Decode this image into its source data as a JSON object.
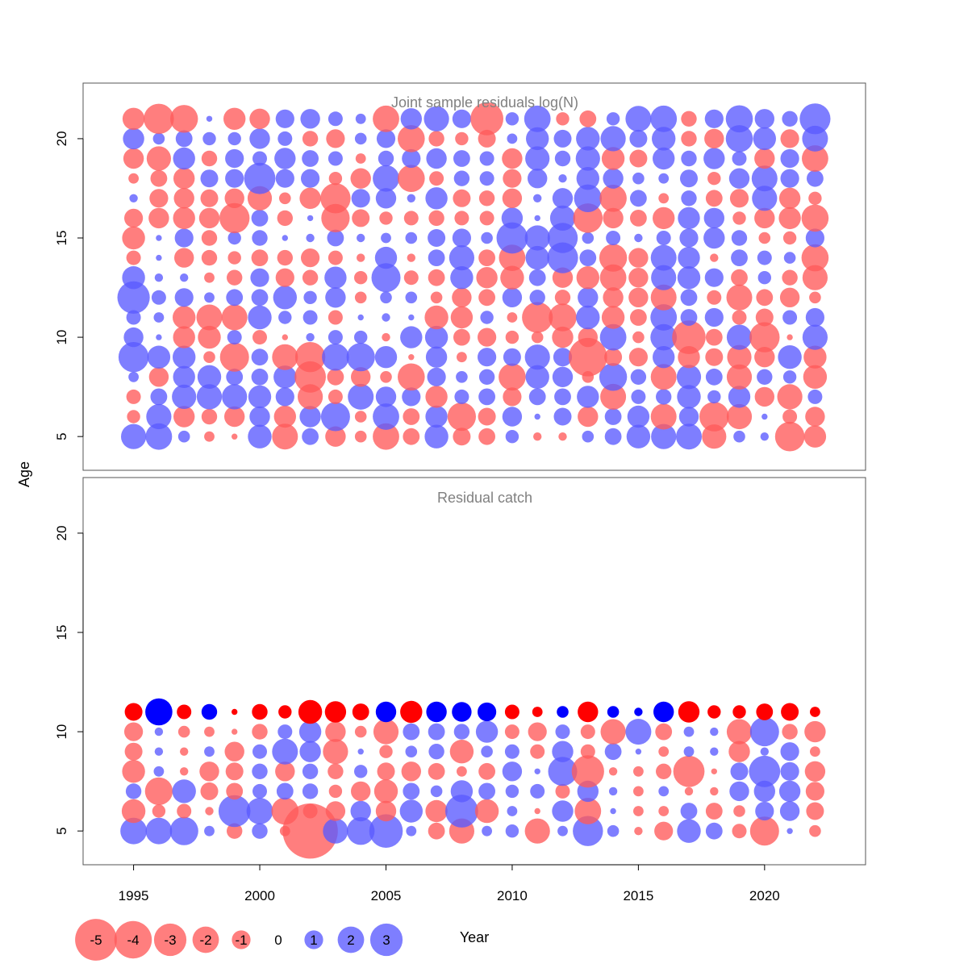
{
  "chart_data": [
    {
      "type": "scatter",
      "title": "Joint sample residuals log(N)",
      "xlabel": "",
      "ylabel": "Age",
      "xlim": [
        1993,
        2024
      ],
      "ylim": [
        3.3,
        22.8
      ],
      "x_ticks": [
        1995,
        2000,
        2005,
        2010,
        2015,
        2020
      ],
      "y_ticks": [
        5,
        10,
        15,
        20
      ],
      "grid": false,
      "encoding": "circle area proportional to |residual|; red = negative, blue = positive",
      "colors": {
        "negative": "#ff5a5a",
        "positive": "#5a5aff"
      },
      "years": [
        1995,
        1996,
        1997,
        1998,
        1999,
        2000,
        2001,
        2002,
        2003,
        2004,
        2005,
        2006,
        2007,
        2008,
        2009,
        2010,
        2011,
        2012,
        2013,
        2014,
        2015,
        2016,
        2017,
        2018,
        2019,
        2020,
        2021,
        2022
      ],
      "ages": [
        5,
        6,
        7,
        8,
        9,
        10,
        11,
        12,
        13,
        14,
        15,
        16,
        17,
        18,
        19,
        20,
        21
      ],
      "residuals": [
        [
          1.8,
          2.0,
          0.4,
          -0.3,
          -0.1,
          1.6,
          -1.9,
          0.8,
          -1.2,
          -0.4,
          -2.0,
          -0.8,
          1.6,
          -0.9,
          -0.8,
          0.5,
          -0.2,
          -0.2,
          0.4,
          0.8,
          1.6,
          1.8,
          1.9,
          -1.7,
          0.4,
          0.2,
          -2.5,
          -1.4
        ],
        [
          -0.5,
          1.8,
          -1.3,
          -0.7,
          -1.2,
          1.2,
          -1.4,
          1.3,
          2.4,
          -0.4,
          2.0,
          -0.8,
          1.4,
          -2.3,
          -0.9,
          1.1,
          0.1,
          0.9,
          -1.2,
          0.8,
          1.4,
          -1.9,
          1.1,
          -2.5,
          -1.8,
          0.1,
          -0.6,
          -1.1
        ],
        [
          -0.6,
          0.8,
          1.7,
          1.8,
          1.8,
          1.5,
          1.0,
          -1.8,
          -0.6,
          1.9,
          1.2,
          1.0,
          -1.4,
          0.6,
          0.8,
          -1.0,
          0.8,
          0.8,
          1.4,
          -1.9,
          0.6,
          0.7,
          1.6,
          0.5,
          1.4,
          -1.1,
          -1.8,
          0.6
        ],
        [
          0.3,
          -1.1,
          1.4,
          1.6,
          0.8,
          0.8,
          1.5,
          -2.8,
          -0.8,
          -1.1,
          -0.4,
          -2.1,
          1.0,
          0.4,
          0.7,
          -2.1,
          1.6,
          1.2,
          -0.4,
          2.2,
          0.7,
          -1.9,
          1.7,
          0.8,
          -1.8,
          0.7,
          0.5,
          -1.6
        ],
        [
          2.6,
          1.5,
          1.5,
          -0.4,
          -2.4,
          0.8,
          -1.9,
          -2.6,
          2.1,
          2.3,
          1.4,
          -0.1,
          1.3,
          -0.3,
          1.0,
          0.9,
          1.8,
          1.0,
          -4.2,
          -0.9,
          -1.0,
          1.4,
          -1.4,
          -0.9,
          -1.7,
          -1.2,
          1.6,
          -1.5
        ],
        [
          1.1,
          0.1,
          -1.4,
          -1.5,
          0.6,
          -0.6,
          -0.1,
          0.2,
          0.6,
          0.5,
          -0.2,
          1.4,
          1.5,
          -0.8,
          -1.0,
          -0.5,
          -0.4,
          -1.3,
          -1.1,
          2.0,
          -0.4,
          2.0,
          -3.2,
          -0.8,
          1.8,
          -2.6,
          -0.1,
          1.8
        ],
        [
          0.6,
          0.3,
          -1.5,
          -1.9,
          -1.9,
          1.6,
          0.5,
          0.6,
          -0.6,
          0.1,
          0.2,
          0.1,
          -1.6,
          -1.4,
          0.5,
          -0.3,
          -2.7,
          -2.2,
          1.6,
          -1.5,
          -0.8,
          2.0,
          0.8,
          1.0,
          -0.6,
          -0.9,
          0.6,
          1.0
        ],
        [
          3.0,
          0.6,
          1.0,
          0.3,
          0.8,
          0.8,
          1.6,
          0.5,
          1.2,
          -0.4,
          0.4,
          0.4,
          -0.4,
          -1.1,
          -0.8,
          1.1,
          0.7,
          -0.7,
          1.2,
          -1.2,
          -1.1,
          -1.9,
          0.8,
          -0.6,
          -1.9,
          -0.8,
          -1.1,
          -0.4
        ],
        [
          1.5,
          0.2,
          0.2,
          -0.3,
          -0.7,
          1.0,
          -1.0,
          -0.7,
          1.4,
          -0.5,
          2.4,
          -0.6,
          -0.8,
          1.5,
          -1.3,
          -1.6,
          0.8,
          -1.2,
          -1.5,
          -2.0,
          -1.1,
          1.8,
          1.5,
          1.0,
          -0.8,
          0.5,
          -0.7,
          -1.8
        ],
        [
          -0.6,
          0.1,
          -1.1,
          -0.7,
          -0.5,
          -0.8,
          -0.7,
          -1.0,
          -0.6,
          -0.2,
          1.4,
          -0.2,
          0.8,
          1.8,
          -0.8,
          -2.0,
          1.6,
          2.7,
          0.8,
          -2.2,
          -1.1,
          1.9,
          1.4,
          -0.2,
          0.8,
          0.6,
          0.4,
          -2.1
        ],
        [
          -1.5,
          0.1,
          1.0,
          -0.7,
          0.5,
          0.7,
          0.1,
          0.2,
          0.8,
          0.2,
          0.3,
          0.4,
          0.9,
          1.0,
          0.4,
          2.8,
          1.8,
          2.6,
          0.4,
          0.6,
          0.2,
          0.6,
          1.0,
          1.3,
          0.7,
          -0.4,
          -0.5,
          1.0
        ],
        [
          -1.0,
          -1.2,
          -1.4,
          -1.2,
          -2.6,
          0.8,
          -0.7,
          0.1,
          -2.3,
          -0.9,
          -0.5,
          -0.6,
          -0.7,
          -0.6,
          -0.6,
          1.3,
          0.1,
          1.8,
          -2.5,
          -1.2,
          -0.8,
          -1.4,
          1.4,
          1.2,
          -0.5,
          -1.2,
          -1.4,
          -2.1
        ],
        [
          0.2,
          -1.0,
          -1.2,
          -0.9,
          -1.1,
          -1.7,
          -0.4,
          -1.3,
          -2.6,
          1.0,
          1.2,
          0.2,
          1.4,
          -0.9,
          -0.7,
          -1.1,
          0.2,
          1.2,
          2.2,
          -2.1,
          0.8,
          -0.3,
          0.7,
          -0.8,
          -1.0,
          1.8,
          -1.3,
          -0.5
        ],
        [
          -0.3,
          -0.8,
          -1.3,
          0.9,
          1.0,
          2.8,
          1.0,
          1.0,
          -0.5,
          -1.2,
          2.0,
          -2.1,
          -0.6,
          0.7,
          0.6,
          -1.0,
          1.1,
          0.2,
          1.5,
          1.2,
          0.4,
          0.3,
          0.9,
          -0.5,
          1.2,
          1.9,
          1.0,
          0.8
        ],
        [
          -1.2,
          -1.7,
          1.4,
          -0.7,
          1.0,
          0.6,
          1.3,
          0.8,
          0.6,
          -0.3,
          0.7,
          1.0,
          1.2,
          0.8,
          0.6,
          -1.2,
          1.7,
          0.7,
          1.7,
          -1.5,
          -0.9,
          1.4,
          0.7,
          1.3,
          0.6,
          -1.2,
          1.0,
          -2.0
        ],
        [
          1.3,
          0.4,
          0.8,
          0.5,
          0.5,
          1.2,
          0.6,
          -0.7,
          -1.0,
          0.4,
          1.0,
          -2.1,
          -0.7,
          -0.5,
          -0.9,
          0.3,
          1.5,
          0.9,
          1.6,
          1.8,
          0.9,
          1.6,
          -0.7,
          -1.1,
          2.1,
          1.5,
          -1.0,
          1.9
        ],
        [
          -1.4,
          -2.6,
          -2.2,
          0.1,
          -1.4,
          -1.2,
          1.0,
          1.1,
          0.6,
          0.3,
          -2.0,
          1.3,
          1.8,
          1.0,
          -3.1,
          0.5,
          2.0,
          -0.5,
          -0.8,
          0.5,
          1.9,
          2.0,
          -0.7,
          1.0,
          2.1,
          1.1,
          0.7,
          2.7
        ]
      ],
      "note_rows": "residuals[i] = age ages[i], columns = years"
    },
    {
      "type": "scatter",
      "title": "Residual catch",
      "xlabel": "Year",
      "ylabel": "Age",
      "xlim": [
        1993,
        2024
      ],
      "ylim": [
        3.3,
        22.8
      ],
      "x_ticks": [
        1995,
        2000,
        2005,
        2010,
        2015,
        2020
      ],
      "x_tick_labels": [
        "1995",
        "2000",
        "2005",
        "2010",
        "2015",
        "2020"
      ],
      "y_ticks": [
        5,
        10,
        15,
        20
      ],
      "grid": false,
      "encoding": "circle area proportional to |residual|; red = negative, blue = positive; age 11 plotted opaque",
      "colors": {
        "negative": "#ff5a5a",
        "positive": "#5a5aff",
        "negative_plus_group": "#ff0000",
        "positive_plus_group": "#0000ff"
      },
      "years": [
        1995,
        1996,
        1997,
        1998,
        1999,
        2000,
        2001,
        2002,
        2003,
        2004,
        2005,
        2006,
        2007,
        2008,
        2009,
        2010,
        2011,
        2012,
        2013,
        2014,
        2015,
        2016,
        2017,
        2018,
        2019,
        2020,
        2021,
        2022
      ],
      "ages": [
        5,
        6,
        7,
        8,
        9,
        10,
        11
      ],
      "residuals": [
        [
          2.0,
          2.0,
          2.3,
          0.3,
          -0.7,
          0.7,
          -0.3,
          -8.7,
          1.8,
          2.2,
          3.2,
          0.3,
          -0.8,
          -1.8,
          0.3,
          0.5,
          -1.8,
          0.3,
          2.6,
          0.4,
          -0.2,
          -1.0,
          1.6,
          0.8,
          -0.6,
          -2.4,
          0.1,
          -0.4
        ],
        [
          -1.6,
          -0.5,
          -0.6,
          -0.2,
          2.9,
          2.0,
          -2.1,
          -0.6,
          -1.1,
          1.2,
          -1.2,
          1.5,
          -1.4,
          3.1,
          -1.6,
          0.3,
          -0.1,
          1.3,
          -2.0,
          0.1,
          -0.3,
          -0.3,
          0.8,
          -0.8,
          -0.4,
          1.0,
          1.1,
          -0.9
        ],
        [
          0.7,
          -2.2,
          1.6,
          -0.9,
          -0.8,
          0.6,
          0.8,
          0.7,
          -0.5,
          -1.1,
          -1.6,
          0.8,
          0.4,
          1.4,
          0.8,
          0.5,
          0.6,
          -0.6,
          1.3,
          0.2,
          -0.3,
          0.3,
          -0.2,
          -0.2,
          1.1,
          1.3,
          1.3,
          -1.0
        ],
        [
          -1.5,
          0.3,
          -0.2,
          -1.1,
          -0.9,
          0.7,
          -1.1,
          0.7,
          -0.7,
          0.5,
          -0.9,
          -1.1,
          -0.8,
          -0.3,
          -0.8,
          1.1,
          0.1,
          2.4,
          -3.0,
          -0.2,
          -0.3,
          -0.7,
          -2.8,
          -0.1,
          0.9,
          2.8,
          1.0,
          -1.2
        ],
        [
          -0.9,
          0.2,
          -0.2,
          0.3,
          -1.1,
          0.6,
          1.9,
          1.3,
          -1.8,
          0.1,
          -0.5,
          0.4,
          0.7,
          -1.6,
          0.4,
          0.6,
          -0.6,
          1.3,
          -0.6,
          0.8,
          0.1,
          -0.3,
          0.3,
          0.2,
          -1.3,
          0.2,
          1.0,
          -0.3
        ],
        [
          -1.0,
          0.2,
          -0.4,
          -0.3,
          -0.1,
          -0.7,
          0.6,
          1.4,
          -1.2,
          -0.4,
          -1.8,
          0.8,
          0.8,
          0.7,
          1.4,
          -0.6,
          -1.0,
          0.6,
          -0.6,
          -1.8,
          1.9,
          -0.8,
          0.3,
          0.2,
          -1.8,
          2.4,
          -0.7,
          -1.3
        ],
        [
          -0.9,
          2.1,
          -0.6,
          0.7,
          -0.1,
          -0.7,
          -0.5,
          -1.6,
          -1.3,
          -0.8,
          1.2,
          -1.4,
          1.2,
          1.1,
          1.0,
          -0.6,
          -0.3,
          0.4,
          -1.2,
          0.4,
          0.2,
          1.2,
          -1.3,
          -0.5,
          -0.5,
          -0.8,
          -0.9,
          -0.3
        ]
      ],
      "note_rows": "residuals[i] = age ages[i], columns = years"
    }
  ],
  "legend": {
    "placement": "bottom-left",
    "items": [
      {
        "label": "-5",
        "value": -5
      },
      {
        "label": "-4",
        "value": -4
      },
      {
        "label": "-3",
        "value": -3
      },
      {
        "label": "-2",
        "value": -2
      },
      {
        "label": "-1",
        "value": -1
      },
      {
        "label": "0",
        "value": 0
      },
      {
        "label": "1",
        "value": 1
      },
      {
        "label": "2",
        "value": 2
      },
      {
        "label": "3",
        "value": 3
      }
    ]
  }
}
